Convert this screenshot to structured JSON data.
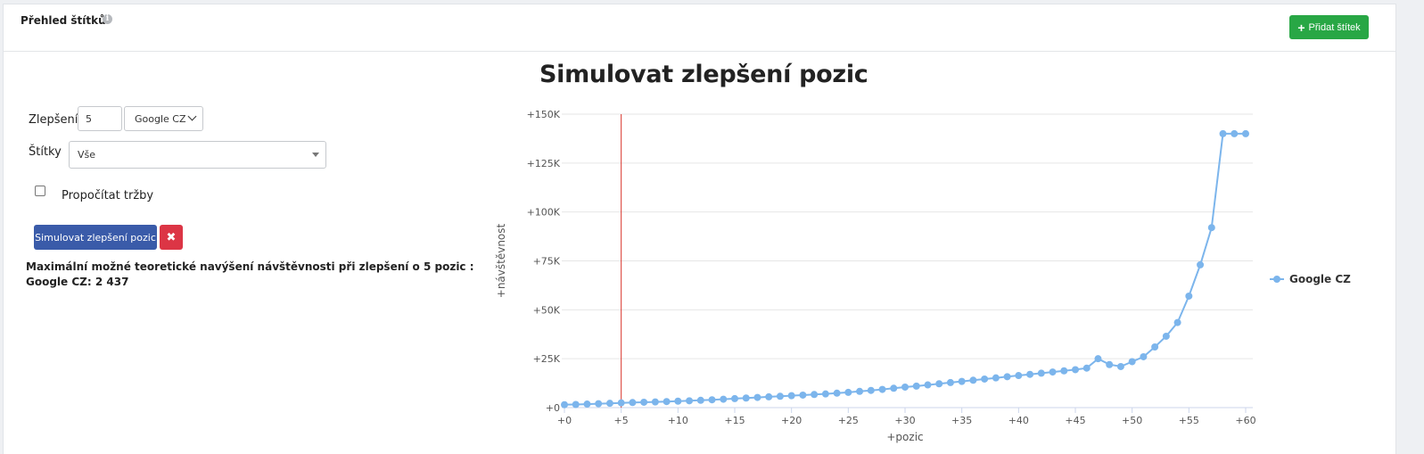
{
  "header": {
    "title": "Přehled štítků",
    "info_icon": "info-icon",
    "add_button_label": "Přidat štítek",
    "add_button_icon": "plus-icon"
  },
  "form": {
    "improve_label": "Zlepšení o",
    "improve_value": "5",
    "engine_selected": "Google CZ",
    "tags_label": "Štítky",
    "tags_selected": "Vše",
    "revenue_checkbox_label": "Propočítat tržby",
    "revenue_checked": false,
    "simulate_button_label": "Simulovat zlepšení pozic",
    "clear_button_label": "✖",
    "colors": {
      "simulate": "#3a5ba9",
      "clear": "#dc3545",
      "add": "#28a745"
    }
  },
  "result": {
    "line1": "Maximální možné teoretické navýšení návštěvnosti při zlepšení o 5 pozic :",
    "line2": "Google CZ: 2 437"
  },
  "chart_data": {
    "type": "line",
    "title": "Simulovat zlepšení pozic",
    "xlabel": "+pozic",
    "ylabel": "+návštěvnost",
    "xlim": [
      0,
      60
    ],
    "ylim": [
      0,
      150000
    ],
    "x_ticks": [
      "+0",
      "+5",
      "+10",
      "+15",
      "+20",
      "+25",
      "+30",
      "+35",
      "+40",
      "+45",
      "+50",
      "+55",
      "+60"
    ],
    "x_tick_values": [
      0,
      5,
      10,
      15,
      20,
      25,
      30,
      35,
      40,
      45,
      50,
      55,
      60
    ],
    "y_ticks": [
      "+0",
      "+25K",
      "+50K",
      "+75K",
      "+100K",
      "+125K",
      "+150K"
    ],
    "y_tick_values": [
      0,
      25000,
      50000,
      75000,
      100000,
      125000,
      150000
    ],
    "grid": true,
    "legend": "right",
    "marker_line_x": 5,
    "marker_line_color": "#d9342b",
    "series": [
      {
        "name": "Google CZ",
        "color": "#7cb5ec",
        "x": [
          0,
          1,
          2,
          3,
          4,
          5,
          6,
          7,
          8,
          9,
          10,
          11,
          12,
          13,
          14,
          15,
          16,
          17,
          18,
          19,
          20,
          21,
          22,
          23,
          24,
          25,
          26,
          27,
          28,
          29,
          30,
          31,
          32,
          33,
          34,
          35,
          36,
          37,
          38,
          39,
          40,
          41,
          42,
          43,
          44,
          45,
          46,
          47,
          48,
          49,
          50,
          51,
          52,
          53,
          54,
          55,
          56,
          57,
          58,
          59,
          60
        ],
        "values": [
          1500,
          1600,
          1800,
          2000,
          2200,
          2437,
          2600,
          2750,
          2900,
          3100,
          3300,
          3500,
          3750,
          4000,
          4300,
          4600,
          4900,
          5200,
          5500,
          5800,
          6100,
          6400,
          6700,
          7000,
          7400,
          7800,
          8300,
          8800,
          9300,
          9900,
          10500,
          11000,
          11600,
          12200,
          12800,
          13400,
          14000,
          14600,
          15200,
          15800,
          16400,
          17000,
          17600,
          18200,
          18800,
          19400,
          20200,
          25000,
          22000,
          21000,
          23500,
          26000,
          31000,
          36500,
          43500,
          57000,
          73000,
          92000,
          140000,
          140000,
          140000
        ]
      }
    ]
  }
}
